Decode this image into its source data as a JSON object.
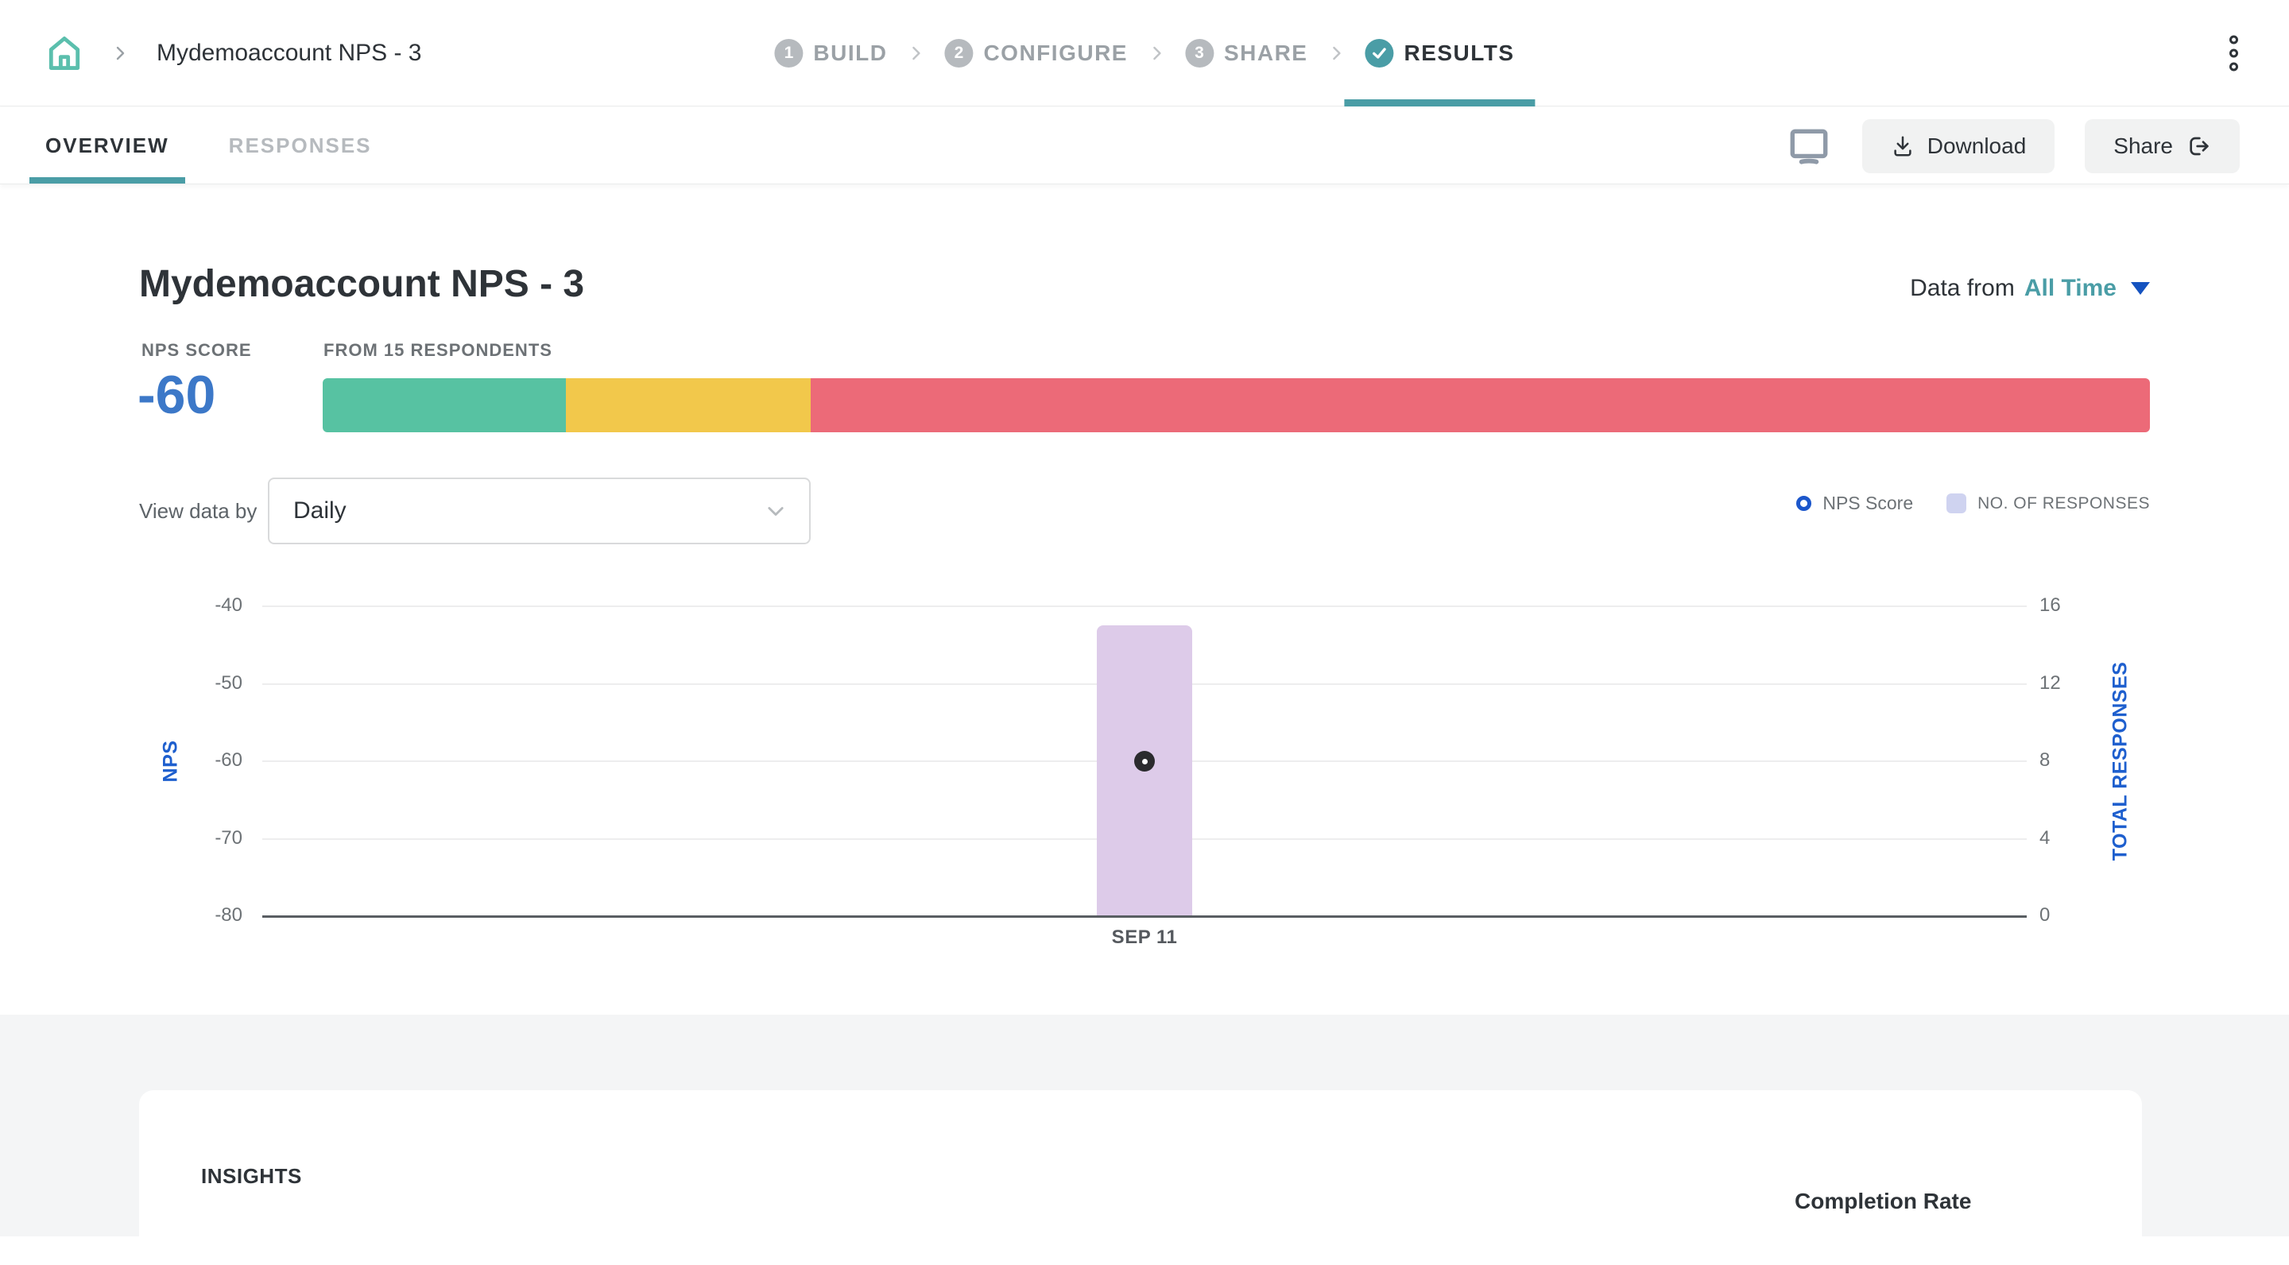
{
  "colors": {
    "teal": "#4A9DA6",
    "home_teal": "#5BBFAD",
    "score_blue": "#3C78C8",
    "axis_blue": "#1E5FCE",
    "promoters_green": "#57C2A2",
    "passives_yellow": "#F2C84B",
    "detractors_red": "#EC6A78",
    "bar_lavender": "#DDCBE9",
    "legend_square": "#CFD3F0",
    "legend_ring_blue": "#1C57CB"
  },
  "header": {
    "breadcrumb": "Mydemoaccount NPS - 3",
    "steps": [
      {
        "num": "1",
        "label": "BUILD"
      },
      {
        "num": "2",
        "label": "CONFIGURE"
      },
      {
        "num": "3",
        "label": "SHARE"
      },
      {
        "num": "✓",
        "label": "RESULTS"
      }
    ]
  },
  "toolbar": {
    "tabs": [
      {
        "label": "OVERVIEW"
      },
      {
        "label": "RESPONSES"
      }
    ],
    "download_label": "Download",
    "share_label": "Share"
  },
  "summary": {
    "title": "Mydemoaccount NPS - 3",
    "data_from_label": "Data from",
    "data_from_value": "All Time",
    "nps_score_label": "NPS SCORE",
    "nps_score": "-60",
    "respondents_label": "FROM 15 RESPONDENTS",
    "distribution": {
      "segments": [
        {
          "name": "promoters",
          "pct": 13.3,
          "color": "#57C2A2"
        },
        {
          "name": "passives",
          "pct": 13.4,
          "color": "#F2C84B"
        },
        {
          "name": "detractors",
          "pct": 73.3,
          "color": "#EC6A78"
        }
      ]
    }
  },
  "controls": {
    "view_data_by_label": "View data by",
    "view_data_by_value": "Daily",
    "legend": [
      {
        "label": "NPS Score",
        "marker": "ring"
      },
      {
        "label": "NO. OF RESPONSES",
        "marker": "square"
      }
    ]
  },
  "chart_data": {
    "type": "bar",
    "subtype": "dual-axis bar + scatter point",
    "categories": [
      "SEP 11"
    ],
    "series": [
      {
        "name": "NPS Score",
        "axis": "left",
        "type": "scatter",
        "values": [
          -60
        ]
      },
      {
        "name": "No. of Responses",
        "axis": "right",
        "type": "bar",
        "values": [
          15
        ]
      }
    ],
    "left_axis": {
      "label": "NPS",
      "ticks": [
        -40,
        -50,
        -60,
        -70,
        -80
      ],
      "min": -80,
      "max": -40
    },
    "right_axis": {
      "label": "TOTAL RESPONSES",
      "ticks": [
        16,
        12,
        8,
        4,
        0
      ],
      "min": 0,
      "max": 16
    },
    "grid": true,
    "bar_color": "#DDCBE9",
    "point_color": "#2B2B2E"
  },
  "insights": {
    "title": "INSIGHTS",
    "completion_rate_label": "Completion Rate"
  }
}
